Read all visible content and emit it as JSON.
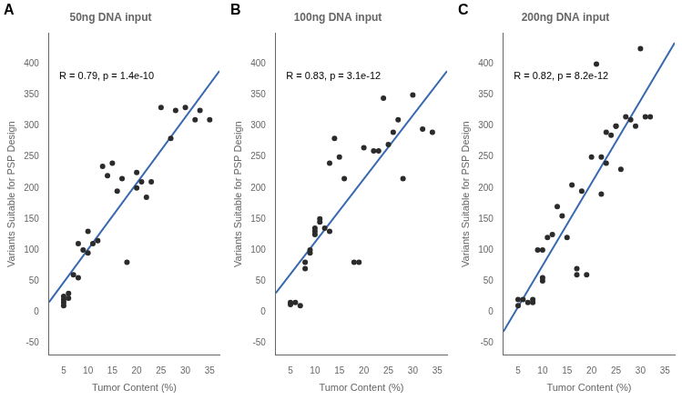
{
  "chart_data": [
    {
      "type": "scatter",
      "panel_label": "A",
      "title": "50ng DNA input",
      "annotation": "R = 0.79, p = 1.4e-10",
      "xlabel": "Tumor Content (%)",
      "ylabel": "Variants Suitable for PSP Design",
      "xlim": [
        2,
        37
      ],
      "xticks": [
        5,
        10,
        15,
        20,
        25,
        30,
        35
      ],
      "ylim": [
        -70,
        450
      ],
      "yticks": [
        -50,
        0,
        50,
        100,
        150,
        200,
        250,
        300,
        350,
        400
      ],
      "grid": false,
      "series": [
        {
          "type": "scatter",
          "color": "#2b2b2b",
          "x": [
            5,
            5,
            5,
            5,
            6,
            6,
            7,
            8,
            8,
            9,
            10,
            10,
            11,
            12,
            13,
            14,
            15,
            16,
            17,
            18,
            20,
            20,
            21,
            22,
            23,
            25,
            27,
            28,
            30,
            32,
            33,
            35
          ],
          "values": [
            25,
            20,
            15,
            10,
            30,
            22,
            60,
            55,
            110,
            100,
            95,
            130,
            110,
            115,
            235,
            220,
            240,
            195,
            215,
            80,
            200,
            225,
            210,
            185,
            210,
            330,
            280,
            325,
            330,
            310,
            325,
            310
          ]
        },
        {
          "type": "line",
          "color": "#3869b0",
          "x": [
            2,
            37
          ],
          "values": [
            15.757,
            388.815
          ]
        }
      ]
    },
    {
      "type": "scatter",
      "panel_label": "B",
      "title": "100ng DNA input",
      "annotation": "R = 0.83, p = 3.1e-12",
      "xlabel": "Tumor Content (%)",
      "ylabel": "Variants Suitable for PSP Design",
      "xlim": [
        2,
        37
      ],
      "xticks": [
        5,
        10,
        15,
        20,
        25,
        30,
        35
      ],
      "ylim": [
        -70,
        450
      ],
      "yticks": [
        -50,
        0,
        50,
        100,
        150,
        200,
        250,
        300,
        350,
        400
      ],
      "grid": false,
      "series": [
        {
          "type": "scatter",
          "color": "#2b2b2b",
          "x": [
            5,
            5,
            6,
            7,
            8,
            8,
            9,
            9,
            10,
            10,
            10,
            11,
            11,
            12,
            13,
            13,
            14,
            15,
            16,
            18,
            19,
            20,
            22,
            23,
            24,
            25,
            26,
            27,
            28,
            30,
            32,
            34
          ],
          "values": [
            15,
            12,
            15,
            10,
            70,
            80,
            95,
            100,
            130,
            125,
            135,
            150,
            145,
            135,
            240,
            130,
            280,
            250,
            215,
            80,
            80,
            265,
            260,
            260,
            345,
            270,
            290,
            310,
            215,
            350,
            295,
            290
          ]
        },
        {
          "type": "line",
          "color": "#3869b0",
          "x": [
            2,
            37
          ],
          "values": [
            30.431,
            388.736
          ]
        }
      ]
    },
    {
      "type": "scatter",
      "panel_label": "C",
      "title": "200ng DNA input",
      "annotation": "R = 0.82, p = 8.2e-12",
      "xlabel": "Tumor Content (%)",
      "ylabel": "Variants Suitable for PSP Design",
      "xlim": [
        2,
        37
      ],
      "xticks": [
        5,
        10,
        15,
        20,
        25,
        30,
        35
      ],
      "ylim": [
        -70,
        450
      ],
      "yticks": [
        -50,
        0,
        50,
        100,
        150,
        200,
        250,
        300,
        350,
        400
      ],
      "grid": false,
      "series": [
        {
          "type": "scatter",
          "color": "#2b2b2b",
          "x": [
            5,
            5,
            6,
            7,
            8,
            8,
            9,
            10,
            10,
            10,
            11,
            12,
            13,
            14,
            15,
            16,
            17,
            17,
            18,
            19,
            20,
            21,
            22,
            22,
            23,
            23,
            24,
            25,
            25,
            26,
            27,
            28,
            29,
            30,
            31,
            32
          ],
          "values": [
            20,
            10,
            20,
            15,
            15,
            20,
            100,
            50,
            100,
            55,
            120,
            125,
            170,
            155,
            120,
            205,
            70,
            60,
            195,
            60,
            250,
            400,
            250,
            190,
            290,
            240,
            285,
            300,
            300,
            230,
            315,
            310,
            300,
            425,
            315,
            315
          ]
        },
        {
          "type": "line",
          "color": "#3869b0",
          "x": [
            2,
            37
          ],
          "values": [
            -31.647,
            434.564
          ]
        }
      ]
    }
  ]
}
